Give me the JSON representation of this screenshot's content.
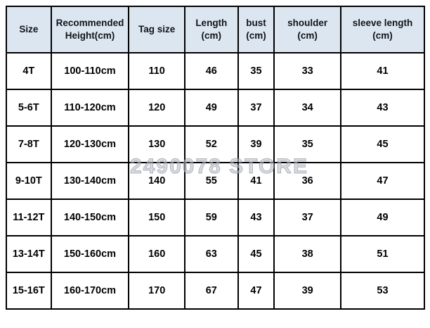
{
  "watermark": {
    "text": "2490078 STORE"
  },
  "colors": {
    "header_bg": "#dce6f1",
    "border": "#000000",
    "body_text": "#000000",
    "watermark": "#b9bdc6"
  },
  "table": {
    "columns": [
      {
        "label": "Size"
      },
      {
        "label": "Recommended\nHeight(cm)"
      },
      {
        "label": "Tag size"
      },
      {
        "label": "Length\n(cm)"
      },
      {
        "label": "bust\n(cm)"
      },
      {
        "label": "shoulder\n(cm)"
      },
      {
        "label": "sleeve length\n(cm)"
      }
    ],
    "rows": [
      [
        "4T",
        "100-110cm",
        "110",
        "46",
        "35",
        "33",
        "41"
      ],
      [
        "5-6T",
        "110-120cm",
        "120",
        "49",
        "37",
        "34",
        "43"
      ],
      [
        "7-8T",
        "120-130cm",
        "130",
        "52",
        "39",
        "35",
        "45"
      ],
      [
        "9-10T",
        "130-140cm",
        "140",
        "55",
        "41",
        "36",
        "47"
      ],
      [
        "11-12T",
        "140-150cm",
        "150",
        "59",
        "43",
        "37",
        "49"
      ],
      [
        "13-14T",
        "150-160cm",
        "160",
        "63",
        "45",
        "38",
        "51"
      ],
      [
        "15-16T",
        "160-170cm",
        "170",
        "67",
        "47",
        "39",
        "53"
      ]
    ]
  }
}
